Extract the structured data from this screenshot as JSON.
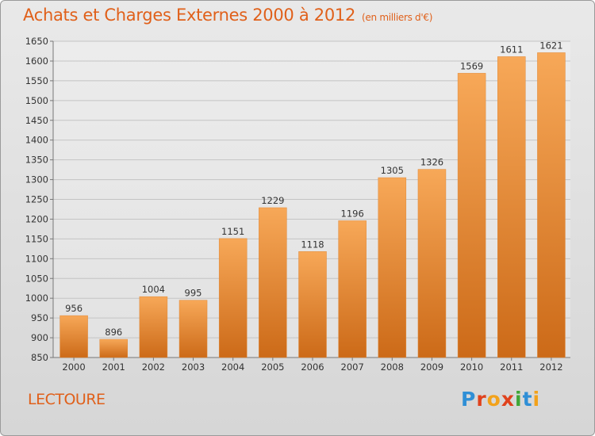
{
  "chart_data": {
    "type": "bar",
    "title": "Achats et Charges Externes 2000 à 2012",
    "subtitle": "(en milliers d'€)",
    "categories": [
      "2000",
      "2001",
      "2002",
      "2003",
      "2004",
      "2005",
      "2006",
      "2007",
      "2008",
      "2009",
      "2010",
      "2011",
      "2012"
    ],
    "values": [
      956,
      896,
      1004,
      995,
      1151,
      1229,
      1118,
      1196,
      1305,
      1326,
      1569,
      1611,
      1621
    ],
    "ylim": [
      850,
      1650
    ],
    "yticks": [
      850,
      900,
      950,
      1000,
      1050,
      1100,
      1150,
      1200,
      1250,
      1300,
      1350,
      1400,
      1450,
      1500,
      1550,
      1600,
      1650
    ],
    "grid": true,
    "bar_color": "#f0923a",
    "title_color": "#e0601a"
  },
  "footer": {
    "commune": "LECTOURE",
    "brand": "Proxiti",
    "brand_colors": [
      "#2f8fd6",
      "#e0421d",
      "#f2a21b",
      "#e0421d",
      "#3fa636",
      "#2f8fd6",
      "#f2a21b"
    ]
  }
}
